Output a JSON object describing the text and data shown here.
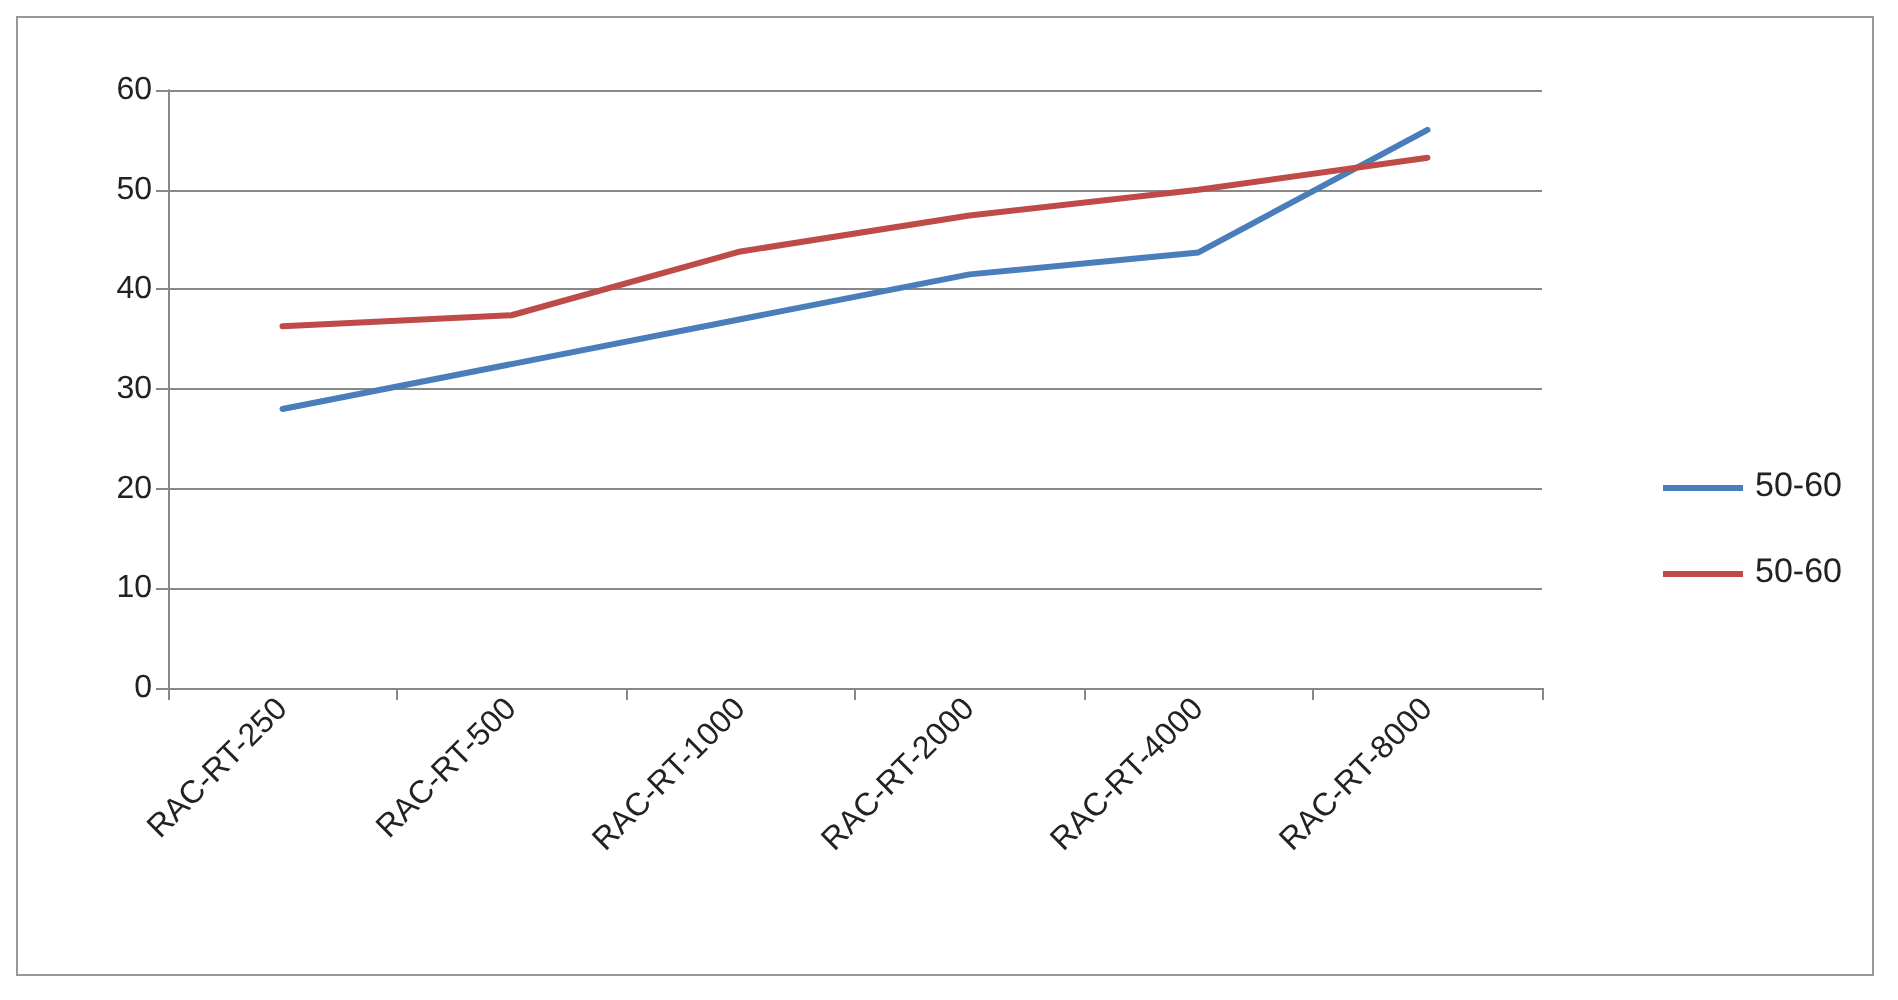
{
  "chart_data": {
    "type": "line",
    "categories": [
      "RAC-RT-250",
      "RAC-RT-500",
      "RAC-RT-1000",
      "RAC-RT-2000",
      "RAC-RT-4000",
      "RAC-RT-8000"
    ],
    "series": [
      {
        "name": "50-60",
        "color": "#4a7ebb",
        "values": [
          28,
          32.5,
          37,
          41.5,
          43.7,
          56
        ]
      },
      {
        "name": "50-60",
        "color": "#be4b48",
        "values": [
          36.3,
          37.4,
          43.8,
          47.4,
          50,
          53.2
        ]
      }
    ],
    "ylim": [
      0,
      60
    ],
    "yticks": [
      0,
      10,
      20,
      30,
      40,
      50,
      60
    ],
    "grid": "y",
    "legend": "right",
    "marker": "none",
    "line_style": "solid"
  }
}
